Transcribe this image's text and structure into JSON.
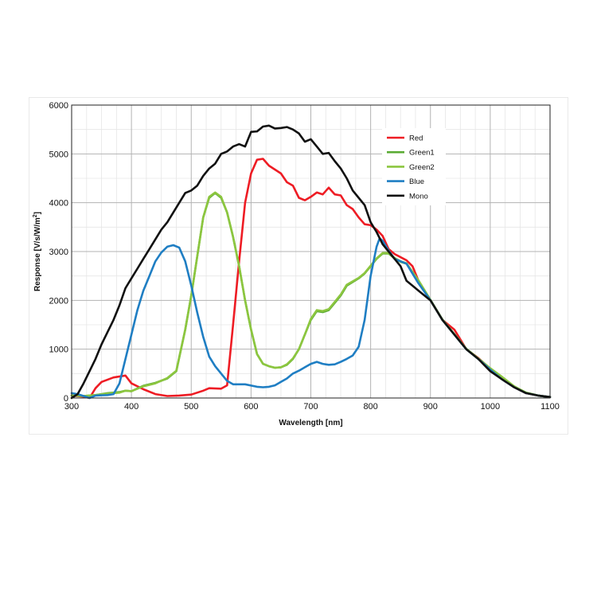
{
  "chart_data": {
    "type": "line",
    "xlabel": "Wavelength [nm]",
    "ylabel_main": "Response [V/s/W/m",
    "ylabel_sup": "2",
    "ylabel_end": "]",
    "xlim": [
      300,
      1100
    ],
    "ylim": [
      0,
      6000
    ],
    "xticks": [
      300,
      400,
      500,
      600,
      700,
      800,
      900,
      1000,
      1100
    ],
    "xtick_labels": [
      "300",
      "400",
      "500",
      "600",
      "700",
      "800",
      "900",
      "1000",
      "1100"
    ],
    "yticks": [
      0,
      1000,
      2000,
      3000,
      4000,
      5000,
      6000
    ],
    "ytick_labels": [
      "0",
      "1000",
      "2000",
      "3000",
      "4000",
      "5000",
      "6000"
    ],
    "minor_x_step": 25,
    "minor_y_step": 500,
    "grid": true,
    "legend_position": "top-right",
    "series": [
      {
        "name": "Red",
        "color": "#ee1c24",
        "points": [
          [
            300,
            50
          ],
          [
            320,
            30
          ],
          [
            330,
            0
          ],
          [
            340,
            200
          ],
          [
            350,
            330
          ],
          [
            370,
            420
          ],
          [
            390,
            460
          ],
          [
            400,
            300
          ],
          [
            420,
            180
          ],
          [
            440,
            80
          ],
          [
            460,
            40
          ],
          [
            480,
            50
          ],
          [
            500,
            70
          ],
          [
            520,
            150
          ],
          [
            530,
            200
          ],
          [
            550,
            190
          ],
          [
            560,
            260
          ],
          [
            570,
            1500
          ],
          [
            580,
            2800
          ],
          [
            590,
            4000
          ],
          [
            600,
            4600
          ],
          [
            610,
            4880
          ],
          [
            620,
            4900
          ],
          [
            630,
            4760
          ],
          [
            650,
            4600
          ],
          [
            660,
            4420
          ],
          [
            670,
            4350
          ],
          [
            680,
            4100
          ],
          [
            690,
            4050
          ],
          [
            700,
            4120
          ],
          [
            710,
            4210
          ],
          [
            720,
            4170
          ],
          [
            730,
            4310
          ],
          [
            740,
            4170
          ],
          [
            750,
            4150
          ],
          [
            760,
            3950
          ],
          [
            770,
            3870
          ],
          [
            780,
            3700
          ],
          [
            790,
            3560
          ],
          [
            800,
            3540
          ],
          [
            810,
            3450
          ],
          [
            820,
            3320
          ],
          [
            830,
            3050
          ],
          [
            840,
            2950
          ],
          [
            860,
            2820
          ],
          [
            870,
            2700
          ],
          [
            880,
            2400
          ],
          [
            890,
            2200
          ],
          [
            900,
            2000
          ],
          [
            920,
            1600
          ],
          [
            940,
            1400
          ],
          [
            960,
            1000
          ],
          [
            980,
            820
          ],
          [
            1000,
            600
          ],
          [
            1020,
            400
          ],
          [
            1040,
            220
          ],
          [
            1060,
            100
          ],
          [
            1080,
            50
          ],
          [
            1100,
            20
          ]
        ]
      },
      {
        "name": "Green1",
        "color": "#5aab33",
        "points": [
          [
            300,
            50
          ],
          [
            320,
            40
          ],
          [
            340,
            60
          ],
          [
            360,
            100
          ],
          [
            380,
            120
          ],
          [
            390,
            150
          ],
          [
            400,
            140
          ],
          [
            420,
            250
          ],
          [
            440,
            310
          ],
          [
            460,
            400
          ],
          [
            475,
            550
          ],
          [
            490,
            1400
          ],
          [
            500,
            2100
          ],
          [
            510,
            2900
          ],
          [
            520,
            3700
          ],
          [
            530,
            4100
          ],
          [
            540,
            4200
          ],
          [
            550,
            4100
          ],
          [
            560,
            3800
          ],
          [
            570,
            3300
          ],
          [
            580,
            2700
          ],
          [
            590,
            2000
          ],
          [
            600,
            1400
          ],
          [
            610,
            900
          ],
          [
            620,
            700
          ],
          [
            630,
            650
          ],
          [
            640,
            620
          ],
          [
            650,
            630
          ],
          [
            660,
            680
          ],
          [
            670,
            800
          ],
          [
            680,
            1000
          ],
          [
            690,
            1300
          ],
          [
            700,
            1600
          ],
          [
            710,
            1780
          ],
          [
            720,
            1760
          ],
          [
            730,
            1800
          ],
          [
            740,
            1950
          ],
          [
            750,
            2100
          ],
          [
            760,
            2300
          ],
          [
            780,
            2450
          ],
          [
            790,
            2550
          ],
          [
            800,
            2700
          ],
          [
            810,
            2850
          ],
          [
            820,
            2960
          ],
          [
            830,
            2960
          ],
          [
            840,
            2860
          ],
          [
            850,
            2790
          ],
          [
            860,
            2750
          ],
          [
            880,
            2400
          ],
          [
            900,
            2000
          ],
          [
            920,
            1600
          ],
          [
            940,
            1300
          ],
          [
            960,
            1000
          ],
          [
            980,
            800
          ],
          [
            1000,
            600
          ],
          [
            1020,
            420
          ],
          [
            1040,
            230
          ],
          [
            1060,
            110
          ],
          [
            1080,
            50
          ],
          [
            1100,
            20
          ]
        ]
      },
      {
        "name": "Green2",
        "color": "#8cc63f",
        "points": [
          [
            300,
            50
          ],
          [
            320,
            40
          ],
          [
            340,
            60
          ],
          [
            360,
            90
          ],
          [
            380,
            110
          ],
          [
            390,
            150
          ],
          [
            400,
            140
          ],
          [
            420,
            240
          ],
          [
            440,
            300
          ],
          [
            460,
            410
          ],
          [
            475,
            560
          ],
          [
            490,
            1400
          ],
          [
            500,
            2100
          ],
          [
            510,
            2900
          ],
          [
            520,
            3700
          ],
          [
            530,
            4120
          ],
          [
            540,
            4210
          ],
          [
            550,
            4120
          ],
          [
            560,
            3800
          ],
          [
            570,
            3300
          ],
          [
            580,
            2700
          ],
          [
            590,
            2000
          ],
          [
            600,
            1400
          ],
          [
            610,
            900
          ],
          [
            620,
            700
          ],
          [
            630,
            650
          ],
          [
            640,
            620
          ],
          [
            650,
            630
          ],
          [
            660,
            690
          ],
          [
            670,
            810
          ],
          [
            680,
            1000
          ],
          [
            690,
            1300
          ],
          [
            700,
            1620
          ],
          [
            710,
            1800
          ],
          [
            720,
            1780
          ],
          [
            730,
            1820
          ],
          [
            740,
            1970
          ],
          [
            750,
            2120
          ],
          [
            760,
            2320
          ],
          [
            780,
            2460
          ],
          [
            790,
            2560
          ],
          [
            800,
            2710
          ],
          [
            810,
            2860
          ],
          [
            820,
            2970
          ],
          [
            830,
            2970
          ],
          [
            840,
            2870
          ],
          [
            850,
            2800
          ],
          [
            860,
            2760
          ],
          [
            880,
            2410
          ],
          [
            900,
            2010
          ],
          [
            920,
            1610
          ],
          [
            940,
            1310
          ],
          [
            960,
            1010
          ],
          [
            980,
            810
          ],
          [
            1000,
            610
          ],
          [
            1020,
            430
          ],
          [
            1040,
            240
          ],
          [
            1060,
            110
          ],
          [
            1080,
            50
          ],
          [
            1100,
            20
          ]
        ]
      },
      {
        "name": "Blue",
        "color": "#1f7ec3",
        "points": [
          [
            300,
            100
          ],
          [
            310,
            80
          ],
          [
            320,
            40
          ],
          [
            330,
            0
          ],
          [
            340,
            50
          ],
          [
            360,
            60
          ],
          [
            370,
            80
          ],
          [
            380,
            300
          ],
          [
            390,
            800
          ],
          [
            400,
            1300
          ],
          [
            410,
            1800
          ],
          [
            420,
            2200
          ],
          [
            430,
            2500
          ],
          [
            440,
            2800
          ],
          [
            450,
            2980
          ],
          [
            460,
            3100
          ],
          [
            470,
            3130
          ],
          [
            480,
            3080
          ],
          [
            490,
            2800
          ],
          [
            500,
            2300
          ],
          [
            510,
            1750
          ],
          [
            520,
            1250
          ],
          [
            530,
            850
          ],
          [
            540,
            650
          ],
          [
            550,
            500
          ],
          [
            560,
            350
          ],
          [
            570,
            280
          ],
          [
            590,
            280
          ],
          [
            610,
            230
          ],
          [
            620,
            220
          ],
          [
            630,
            230
          ],
          [
            640,
            260
          ],
          [
            650,
            330
          ],
          [
            660,
            400
          ],
          [
            670,
            500
          ],
          [
            680,
            560
          ],
          [
            690,
            630
          ],
          [
            700,
            700
          ],
          [
            710,
            740
          ],
          [
            720,
            700
          ],
          [
            730,
            680
          ],
          [
            740,
            690
          ],
          [
            750,
            740
          ],
          [
            760,
            800
          ],
          [
            770,
            870
          ],
          [
            780,
            1050
          ],
          [
            790,
            1600
          ],
          [
            800,
            2500
          ],
          [
            810,
            3100
          ],
          [
            815,
            3270
          ],
          [
            820,
            3220
          ],
          [
            830,
            3020
          ],
          [
            840,
            2850
          ],
          [
            860,
            2750
          ],
          [
            880,
            2350
          ],
          [
            900,
            2000
          ],
          [
            920,
            1600
          ],
          [
            940,
            1300
          ],
          [
            960,
            1000
          ],
          [
            980,
            800
          ],
          [
            1000,
            580
          ],
          [
            1020,
            380
          ],
          [
            1040,
            220
          ],
          [
            1060,
            100
          ],
          [
            1080,
            50
          ],
          [
            1100,
            20
          ]
        ]
      },
      {
        "name": "Mono",
        "color": "#111111",
        "points": [
          [
            300,
            0
          ],
          [
            310,
            80
          ],
          [
            320,
            300
          ],
          [
            330,
            550
          ],
          [
            340,
            800
          ],
          [
            350,
            1100
          ],
          [
            360,
            1350
          ],
          [
            370,
            1600
          ],
          [
            380,
            1900
          ],
          [
            390,
            2250
          ],
          [
            400,
            2450
          ],
          [
            410,
            2650
          ],
          [
            420,
            2850
          ],
          [
            430,
            3050
          ],
          [
            440,
            3250
          ],
          [
            450,
            3450
          ],
          [
            460,
            3600
          ],
          [
            470,
            3800
          ],
          [
            480,
            4000
          ],
          [
            490,
            4200
          ],
          [
            500,
            4250
          ],
          [
            510,
            4350
          ],
          [
            520,
            4550
          ],
          [
            530,
            4700
          ],
          [
            540,
            4800
          ],
          [
            550,
            5000
          ],
          [
            560,
            5050
          ],
          [
            570,
            5150
          ],
          [
            580,
            5200
          ],
          [
            590,
            5150
          ],
          [
            600,
            5450
          ],
          [
            610,
            5460
          ],
          [
            620,
            5560
          ],
          [
            630,
            5580
          ],
          [
            640,
            5520
          ],
          [
            650,
            5530
          ],
          [
            660,
            5550
          ],
          [
            670,
            5500
          ],
          [
            680,
            5420
          ],
          [
            690,
            5250
          ],
          [
            700,
            5300
          ],
          [
            710,
            5150
          ],
          [
            720,
            5000
          ],
          [
            730,
            5020
          ],
          [
            740,
            4850
          ],
          [
            750,
            4700
          ],
          [
            760,
            4500
          ],
          [
            770,
            4250
          ],
          [
            780,
            4100
          ],
          [
            790,
            3950
          ],
          [
            800,
            3600
          ],
          [
            810,
            3400
          ],
          [
            820,
            3150
          ],
          [
            830,
            3000
          ],
          [
            840,
            2850
          ],
          [
            850,
            2700
          ],
          [
            860,
            2400
          ],
          [
            870,
            2300
          ],
          [
            880,
            2200
          ],
          [
            890,
            2100
          ],
          [
            900,
            2000
          ],
          [
            920,
            1600
          ],
          [
            940,
            1300
          ],
          [
            960,
            1000
          ],
          [
            980,
            800
          ],
          [
            1000,
            550
          ],
          [
            1020,
            380
          ],
          [
            1040,
            220
          ],
          [
            1060,
            100
          ],
          [
            1080,
            50
          ],
          [
            1100,
            20
          ]
        ]
      }
    ]
  }
}
